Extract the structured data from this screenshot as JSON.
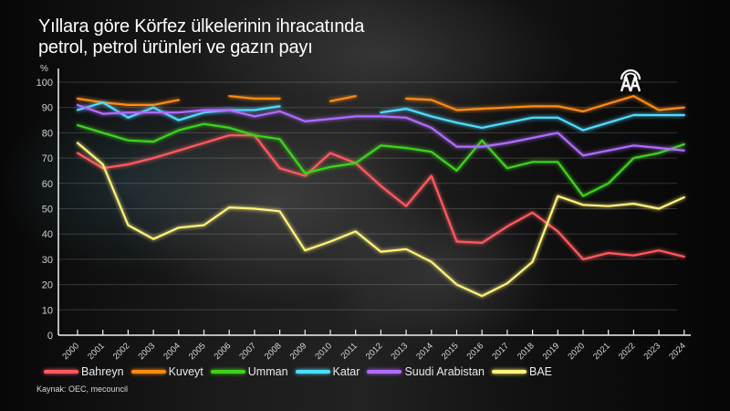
{
  "title_line1": "Yıllara göre Körfez ülkelerinin ihracatında",
  "title_line2": "petrol, petrol ürünleri ve gazın payı",
  "source": "Kaynak: OEC, mecouncil",
  "logo": "AA",
  "chart_data": {
    "type": "line",
    "title": "Yıllara göre Körfez ülkelerinin ihracatında petrol, petrol ürünleri ve gazın payı",
    "xlabel": "",
    "ylabel": "%",
    "ylim": [
      0,
      100
    ],
    "yticks": [
      0,
      10,
      20,
      30,
      40,
      50,
      60,
      70,
      80,
      90,
      100
    ],
    "grid": true,
    "legend_position": "bottom",
    "x": [
      "2000",
      "2001",
      "2002",
      "2003",
      "2004",
      "2005",
      "2006",
      "2007",
      "2008",
      "2009",
      "2010",
      "2011",
      "2012",
      "2013",
      "2014",
      "2015",
      "2016",
      "2017",
      "2018",
      "2019",
      "2020",
      "2021",
      "2022",
      "2023",
      "2024"
    ],
    "series": [
      {
        "name": "Bahreyn",
        "color": "#ff5a5f",
        "values": [
          72,
          66,
          67.5,
          70,
          73,
          76,
          79,
          79,
          66,
          63,
          72,
          68,
          59,
          51,
          63,
          37,
          36.5,
          43,
          48.5,
          41,
          30,
          32.5,
          31.5,
          33.5,
          31
        ]
      },
      {
        "name": "Kuveyt",
        "color": "#ff8a12",
        "values": [
          93.5,
          92,
          91,
          91,
          93,
          null,
          94.5,
          93.5,
          93.5,
          null,
          92.5,
          94.5,
          null,
          93.5,
          93,
          89,
          89.5,
          90,
          90.5,
          90.5,
          88.5,
          91.5,
          94.5,
          89,
          90
        ]
      },
      {
        "name": "Umman",
        "color": "#3fd21a",
        "values": [
          83,
          80,
          77,
          76.5,
          81,
          83.5,
          82,
          79,
          77.5,
          64,
          66.5,
          68,
          75,
          74,
          72.5,
          65,
          77,
          66,
          68.5,
          68.5,
          55,
          60,
          70,
          72,
          75.5
        ]
      },
      {
        "name": "Katar",
        "color": "#4fdcff",
        "values": [
          89,
          92,
          86,
          90,
          85,
          88,
          89,
          89,
          90.5,
          null,
          null,
          null,
          88,
          89.5,
          86.5,
          84,
          82,
          84,
          86,
          86,
          81,
          84,
          87,
          87,
          87
        ]
      },
      {
        "name": "Suudi Arabistan",
        "color": "#b06cff",
        "values": [
          91,
          87.5,
          88,
          88,
          88,
          89,
          89,
          86.5,
          88.5,
          84.5,
          85.5,
          86.5,
          86.5,
          86,
          82,
          74.5,
          74.5,
          76,
          78,
          80,
          71,
          73,
          75,
          74,
          73
        ]
      },
      {
        "name": "BAE",
        "color": "#fff27a",
        "values": [
          76,
          67.5,
          43.5,
          38,
          42.5,
          43.5,
          50.5,
          50,
          49,
          33.5,
          37,
          41,
          33,
          34,
          29,
          20,
          15.5,
          20.5,
          29,
          55,
          51.5,
          51,
          52,
          50,
          54.5
        ]
      }
    ]
  },
  "legend": [
    {
      "label": "Bahreyn",
      "color": "#ff5a5f"
    },
    {
      "label": "Kuveyt",
      "color": "#ff8a12"
    },
    {
      "label": "Umman",
      "color": "#3fd21a"
    },
    {
      "label": "Katar",
      "color": "#4fdcff"
    },
    {
      "label": "Suudi Arabistan",
      "color": "#b06cff"
    },
    {
      "label": "BAE",
      "color": "#fff27a"
    }
  ]
}
